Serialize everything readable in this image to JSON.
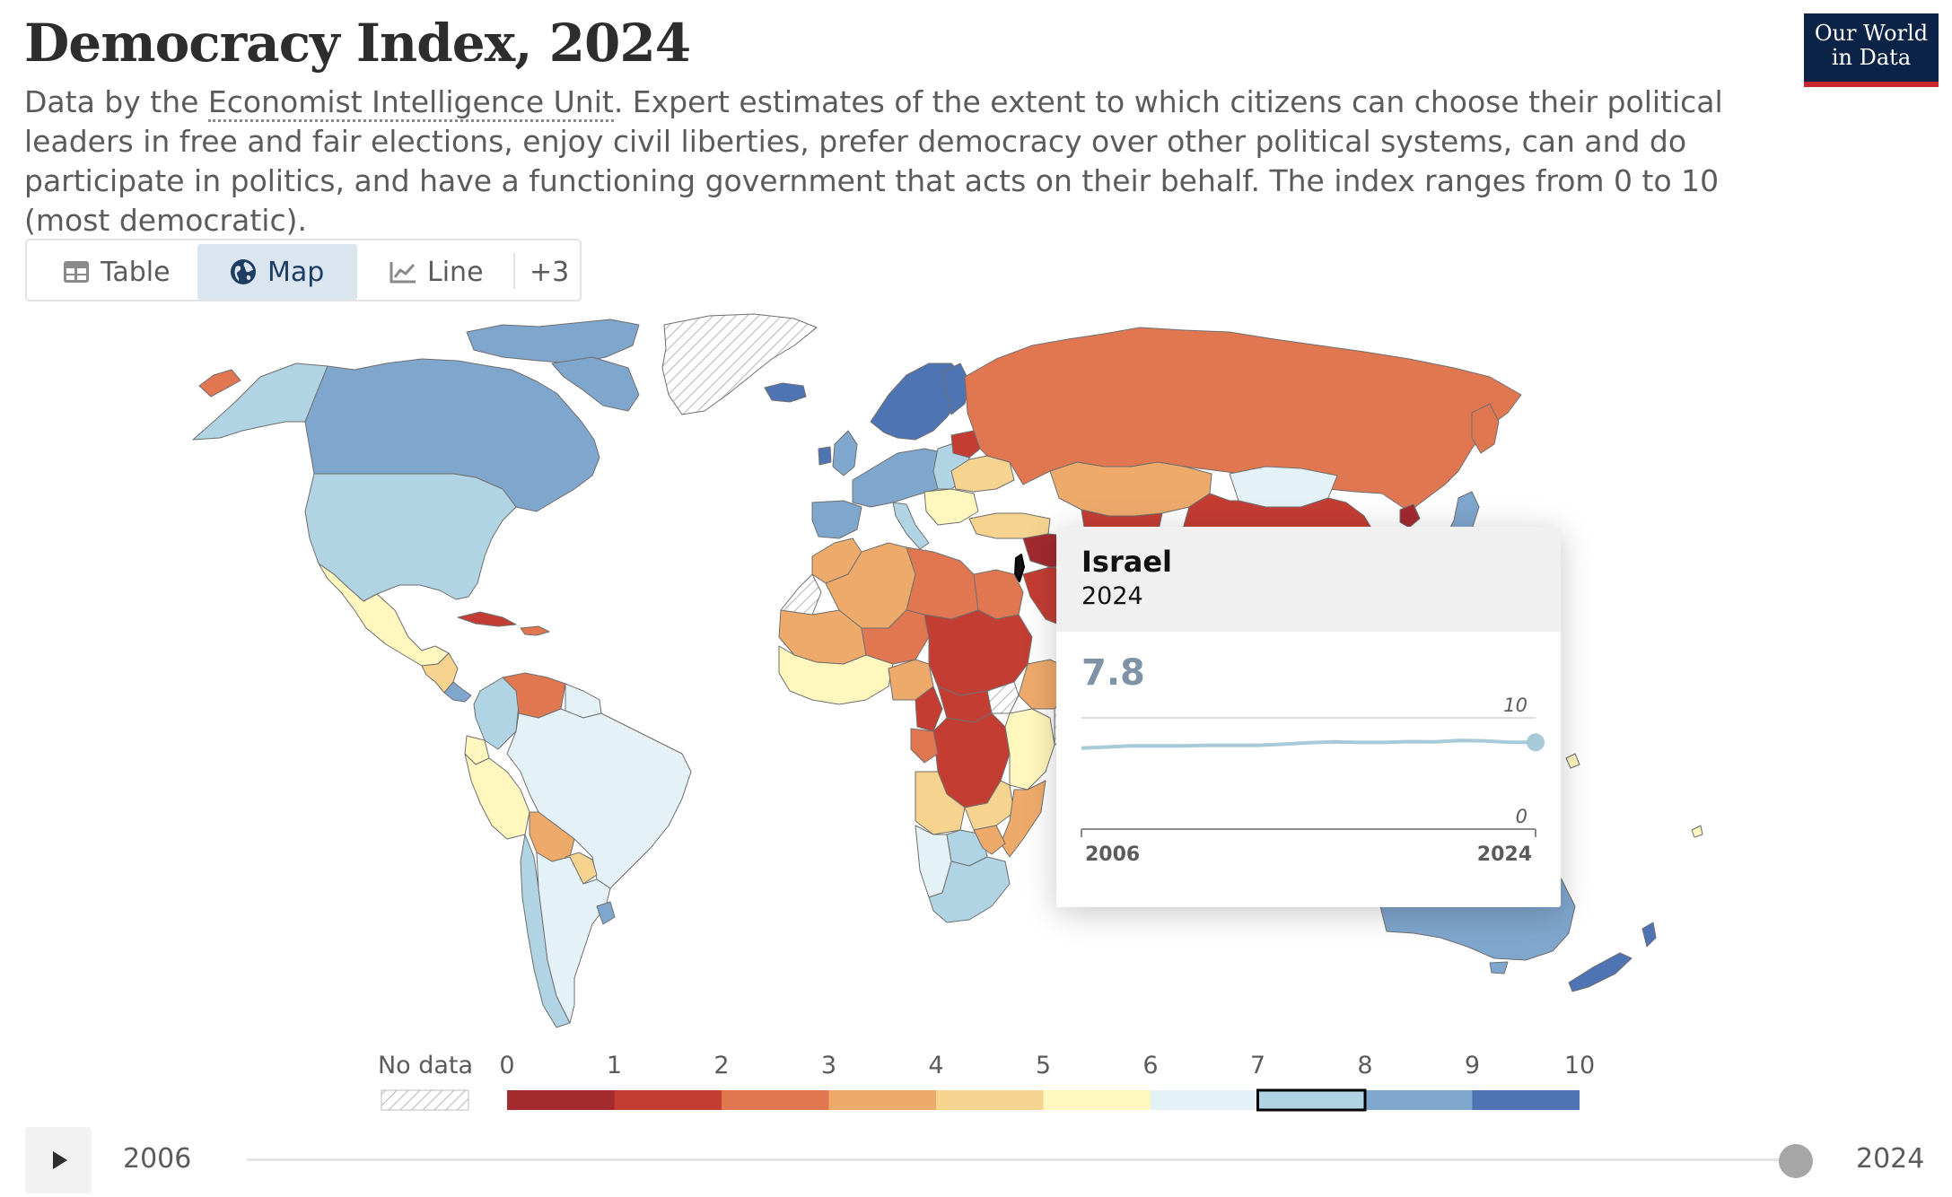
{
  "header": {
    "title": "Democracy Index, 2024",
    "subtitle_prefix": "Data by the ",
    "subtitle_link": "Economist Intelligence Unit",
    "subtitle_rest": ". Expert estimates of the extent to which citizens can choose their political leaders in free and fair elections, enjoy civil liberties, prefer democracy over other political systems, can and do participate in politics, and have a functioning government that acts on their behalf. The index ranges from 0 to 10 (most democratic).",
    "logo_line1": "Our World",
    "logo_line2": "in Data"
  },
  "tabs": {
    "table_label": "Table",
    "map_label": "Map",
    "line_label": "Line",
    "more_label": "+3",
    "active": "Map",
    "icons": {
      "table": "table-icon",
      "map": "globe-icon",
      "line": "line-chart-icon"
    }
  },
  "tooltip": {
    "country": "Israel",
    "year": "2024",
    "value": "7.8",
    "spark": {
      "y_max_label": "10",
      "y_min_label": "0",
      "x_start_label": "2006",
      "x_end_label": "2024",
      "ylim": [
        0,
        10
      ],
      "years": [
        2006,
        2008,
        2010,
        2011,
        2012,
        2013,
        2014,
        2015,
        2016,
        2017,
        2018,
        2019,
        2020,
        2021,
        2022,
        2023,
        2024
      ],
      "values": [
        7.28,
        7.48,
        7.48,
        7.53,
        7.53,
        7.53,
        7.63,
        7.77,
        7.85,
        7.79,
        7.79,
        7.86,
        7.84,
        7.97,
        7.93,
        7.8,
        7.8
      ]
    }
  },
  "legend": {
    "no_data_label": "No data",
    "tick_labels": [
      "0",
      "1",
      "2",
      "3",
      "4",
      "5",
      "6",
      "7",
      "8",
      "9",
      "10"
    ],
    "colors": [
      "#a32a2f",
      "#c43d33",
      "#e17751",
      "#eeaa6b",
      "#f6d48f",
      "#fff7bd",
      "#e4f1f6",
      "#b0d4e3",
      "#7fa6cd",
      "#4f74b4"
    ],
    "highlighted_bin": [
      7,
      8
    ]
  },
  "timeline": {
    "start_label": "2006",
    "end_label": "2024",
    "current_year": 2024
  },
  "map": {
    "type": "choropleth",
    "year": 2024,
    "no_data_pattern": "hatched",
    "highlighted_country": "Israel"
  }
}
